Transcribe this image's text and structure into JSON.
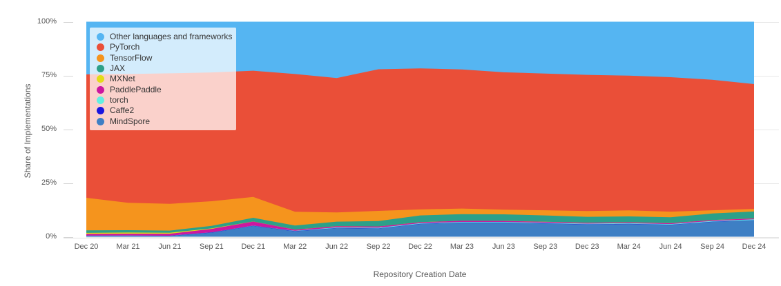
{
  "chart_data": {
    "type": "area",
    "stacked": true,
    "normalized": "percent",
    "xlabel": "Repository Creation Date",
    "ylabel": "Share of Implementations",
    "categories": [
      "Dec 20",
      "Mar 21",
      "Jun 21",
      "Sep 21",
      "Dec 21",
      "Mar 22",
      "Jun 22",
      "Sep 22",
      "Dec 22",
      "Mar 23",
      "Jun 23",
      "Sep 23",
      "Dec 23",
      "Mar 24",
      "Jun 24",
      "Sep 24",
      "Dec 24"
    ],
    "y_ticks": [
      "0%",
      "25%",
      "50%",
      "75%",
      "100%"
    ],
    "ylim": [
      0,
      100
    ],
    "grid": "horizontal",
    "legend_position": "top-left",
    "series_bottom_to_top": [
      {
        "name": "MindSpore",
        "color": "#3e7fc4",
        "values": [
          0.35,
          0.4,
          0.35,
          1.9,
          5.0,
          2.5,
          4.0,
          3.8,
          5.9,
          6.5,
          6.5,
          6.1,
          5.7,
          5.9,
          5.5,
          6.9,
          7.6
        ]
      },
      {
        "name": "Caffe2",
        "color": "#1a16e0",
        "values": [
          0.1,
          0.1,
          0.1,
          0.1,
          0.1,
          0.1,
          0.1,
          0.1,
          0.1,
          0.1,
          0.1,
          0.1,
          0.1,
          0.1,
          0.1,
          0.1,
          0.1
        ]
      },
      {
        "name": "torch",
        "color": "#62efe2",
        "values": [
          0.05,
          0.05,
          0.05,
          0.05,
          0.05,
          0.15,
          0.25,
          0.3,
          0.3,
          0.3,
          0.3,
          0.3,
          0.3,
          0.3,
          0.3,
          0.35,
          0.4
        ]
      },
      {
        "name": "PaddlePaddle",
        "color": "#cc17a0",
        "values": [
          0.8,
          0.85,
          0.9,
          1.6,
          1.9,
          0.55,
          0.55,
          0.55,
          0.45,
          0.5,
          0.45,
          0.45,
          0.4,
          0.4,
          0.4,
          0.4,
          0.4
        ]
      },
      {
        "name": "MXNet",
        "color": "#e3dc17",
        "values": [
          0.5,
          0.55,
          0.45,
          0.25,
          0.05,
          0.03,
          0.03,
          0.03,
          0.03,
          0.03,
          0.03,
          0.03,
          0.03,
          0.03,
          0.03,
          0.03,
          0.03
        ]
      },
      {
        "name": "JAX",
        "color": "#2ca089",
        "values": [
          1.15,
          1.1,
          1.0,
          1.15,
          1.7,
          1.87,
          2.07,
          2.52,
          3.12,
          3.07,
          3.02,
          2.92,
          2.72,
          2.72,
          2.72,
          3.02,
          3.22
        ]
      },
      {
        "name": "TensorFlow",
        "color": "#f5941d",
        "values": [
          15.15,
          12.75,
          12.45,
          11.45,
          9.7,
          6.4,
          4.3,
          4.7,
          2.8,
          2.6,
          2.2,
          2.4,
          2.7,
          2.8,
          2.6,
          1.5,
          1.2
        ]
      },
      {
        "name": "PyTorch",
        "color": "#ea4f38",
        "values": [
          57.4,
          59.9,
          60.7,
          59.9,
          58.7,
          64.1,
          62.5,
          65.9,
          65.6,
          64.7,
          63.9,
          63.6,
          63.35,
          62.65,
          62.55,
          60.7,
          58.05
        ]
      },
      {
        "name": "Other languages and frameworks",
        "color": "#55b5f2",
        "values": [
          24.5,
          24.3,
          24.0,
          23.6,
          22.8,
          24.3,
          26.2,
          22.1,
          21.7,
          22.2,
          23.5,
          24.1,
          24.7,
          25.1,
          25.8,
          27.0,
          29.0
        ]
      }
    ]
  }
}
